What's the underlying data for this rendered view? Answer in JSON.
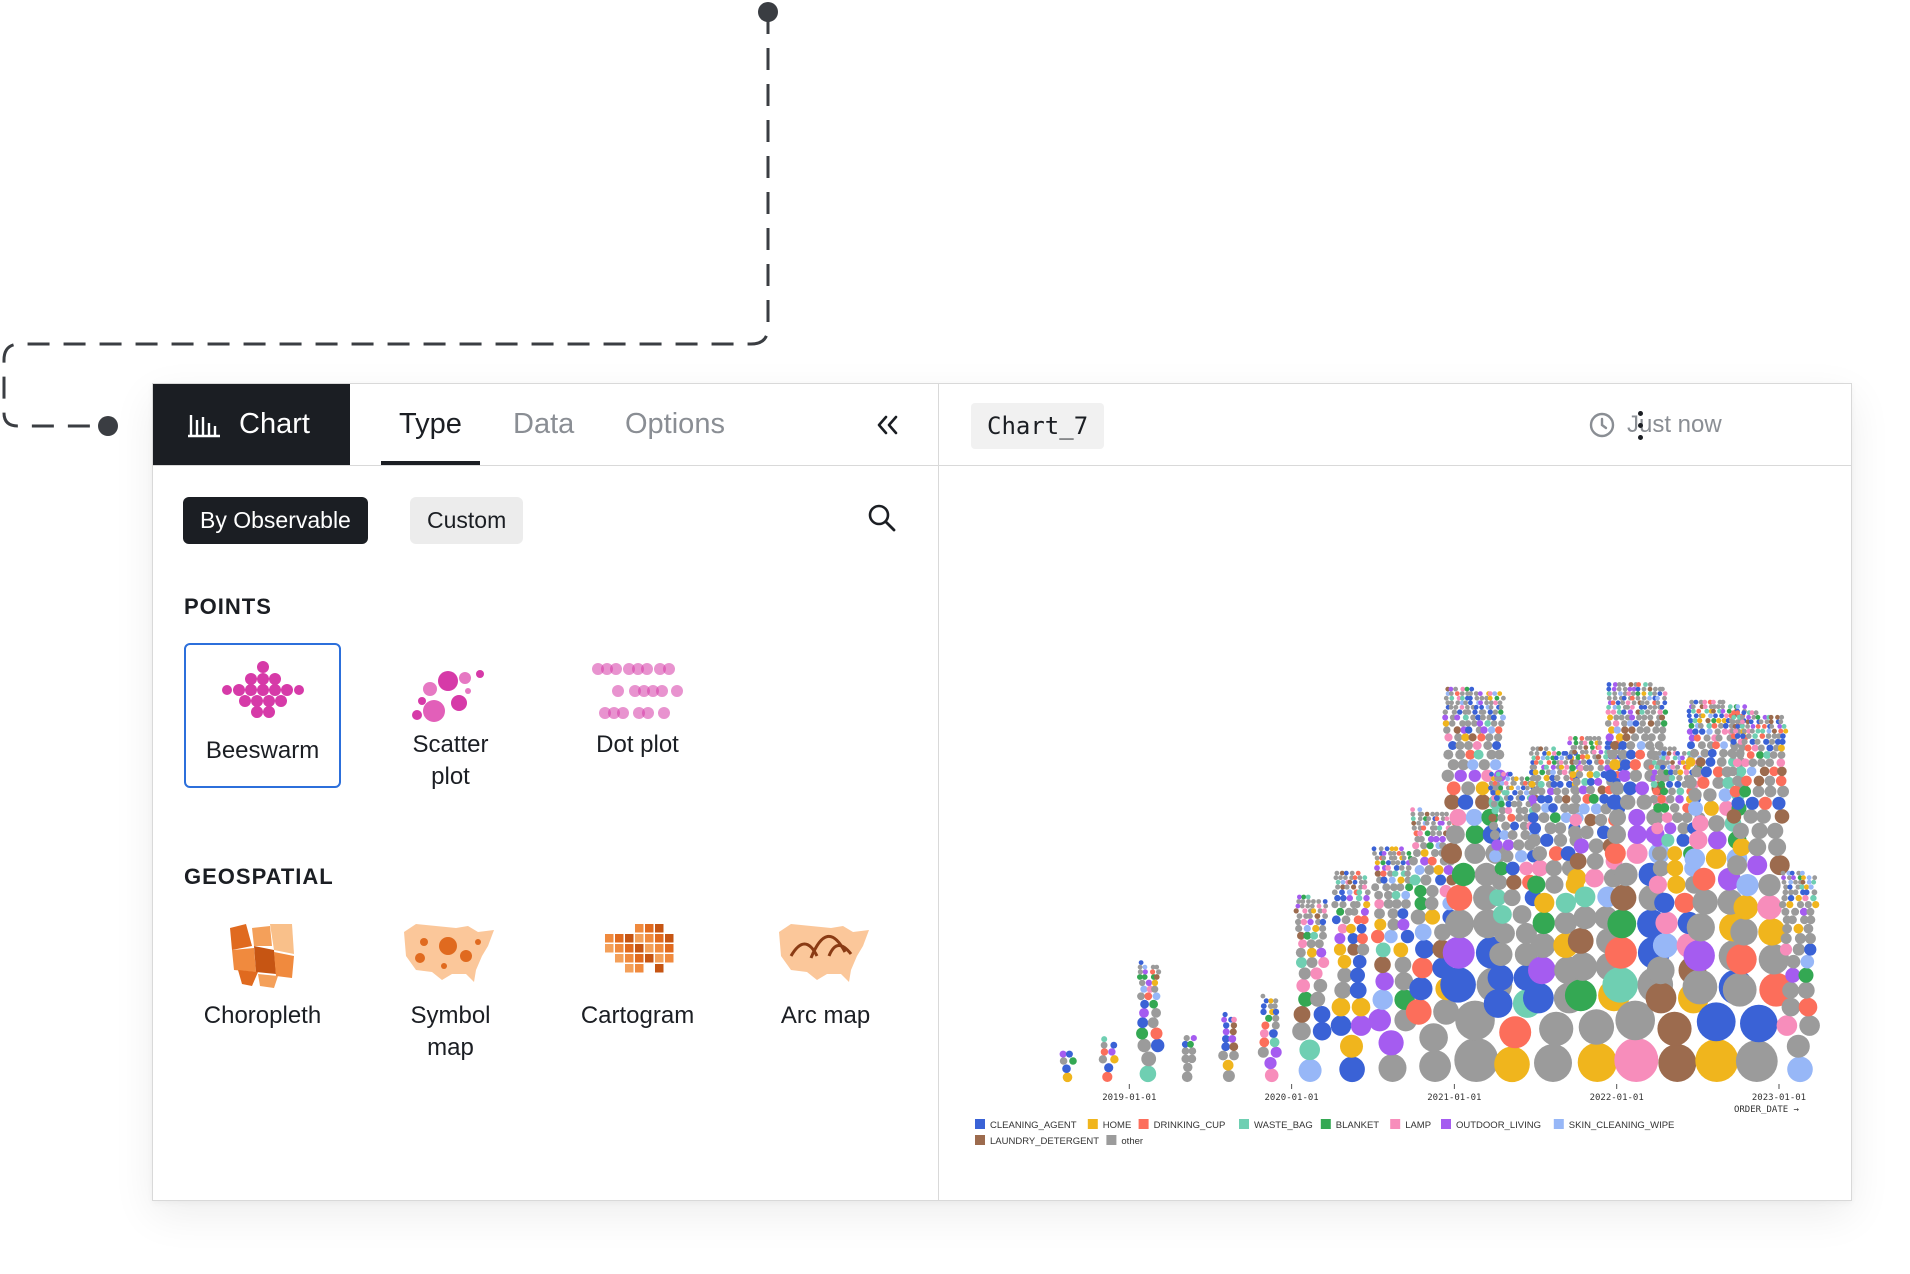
{
  "panel": {
    "chart_tab_label": "Chart",
    "tabs": [
      {
        "label": "Type",
        "active": true
      },
      {
        "label": "Data",
        "active": false
      },
      {
        "label": "Options",
        "active": false
      }
    ],
    "source_toggle": {
      "selected": "By Observable",
      "other": "Custom"
    },
    "sections": [
      {
        "title": "POINTS",
        "items": [
          {
            "label": "Beeswarm",
            "icon": "beeswarm-icon",
            "selected": true
          },
          {
            "label": "Scatter plot",
            "icon": "scatter-plot-icon",
            "selected": false
          },
          {
            "label": "Dot plot",
            "icon": "dot-plot-icon",
            "selected": false
          }
        ]
      },
      {
        "title": "GEOSPATIAL",
        "items": [
          {
            "label": "Choropleth",
            "icon": "choropleth-icon",
            "selected": false
          },
          {
            "label": "Symbol map",
            "icon": "symbol-map-icon",
            "selected": false
          },
          {
            "label": "Cartogram",
            "icon": "cartogram-icon",
            "selected": false
          },
          {
            "label": "Arc map",
            "icon": "arc-map-icon",
            "selected": false
          }
        ]
      }
    ]
  },
  "chart_header": {
    "name": "Chart_7",
    "saved_status": "Just now"
  },
  "colors": {
    "dark": "#1b1e23",
    "selection": "#2c6fdb",
    "points_icons": "#d63aa8",
    "geo_icons": "#ef7d2e"
  },
  "chart_data": {
    "type": "scatter",
    "chart_subtype": "beeswarm",
    "xlabel": "ORDER_DATE →",
    "x_ticks": [
      "2019-01-01",
      "2020-01-01",
      "2021-01-01",
      "2022-01-01",
      "2023-01-01"
    ],
    "x_range": [
      "2018-01-01",
      "2023-02-15"
    ],
    "legend_position": "bottom-left",
    "series": [
      {
        "name": "CLEANING_AGENT",
        "color": "#3a62d6"
      },
      {
        "name": "HOME",
        "color": "#f0b51d"
      },
      {
        "name": "DRINKING_CUP",
        "color": "#fc6e5b"
      },
      {
        "name": "WASTE_BAG",
        "color": "#6fcfb2"
      },
      {
        "name": "BLANKET",
        "color": "#34a853"
      },
      {
        "name": "LAMP",
        "color": "#f78dbb"
      },
      {
        "name": "OUTDOOR_LIVING",
        "color": "#a55cf0"
      },
      {
        "name": "SKIN_CLEANING_WIPE",
        "color": "#97b7f7"
      },
      {
        "name": "LAUNDRY_DETERGENT",
        "color": "#9c6b4e"
      },
      {
        "name": "other",
        "color": "#9b9b9b"
      }
    ],
    "approx_point_density_by_quarter": [
      {
        "x": "2018-Q3",
        "count": 6
      },
      {
        "x": "2018-Q4",
        "count": 9
      },
      {
        "x": "2019-Q1",
        "count": 34
      },
      {
        "x": "2019-Q2",
        "count": 10
      },
      {
        "x": "2019-Q3",
        "count": 16
      },
      {
        "x": "2019-Q4",
        "count": 22
      },
      {
        "x": "2020-Q1",
        "count": 60
      },
      {
        "x": "2020-Q2",
        "count": 70
      },
      {
        "x": "2020-Q3",
        "count": 80
      },
      {
        "x": "2020-Q4",
        "count": 95
      },
      {
        "x": "2021-Q1",
        "count": 150
      },
      {
        "x": "2021-Q2",
        "count": 110
      },
      {
        "x": "2021-Q3",
        "count": 120
      },
      {
        "x": "2021-Q4",
        "count": 125
      },
      {
        "x": "2022-Q1",
        "count": 165
      },
      {
        "x": "2022-Q2",
        "count": 120
      },
      {
        "x": "2022-Q3",
        "count": 140
      },
      {
        "x": "2022-Q4",
        "count": 135
      },
      {
        "x": "2023-Q1",
        "count": 70
      }
    ]
  }
}
